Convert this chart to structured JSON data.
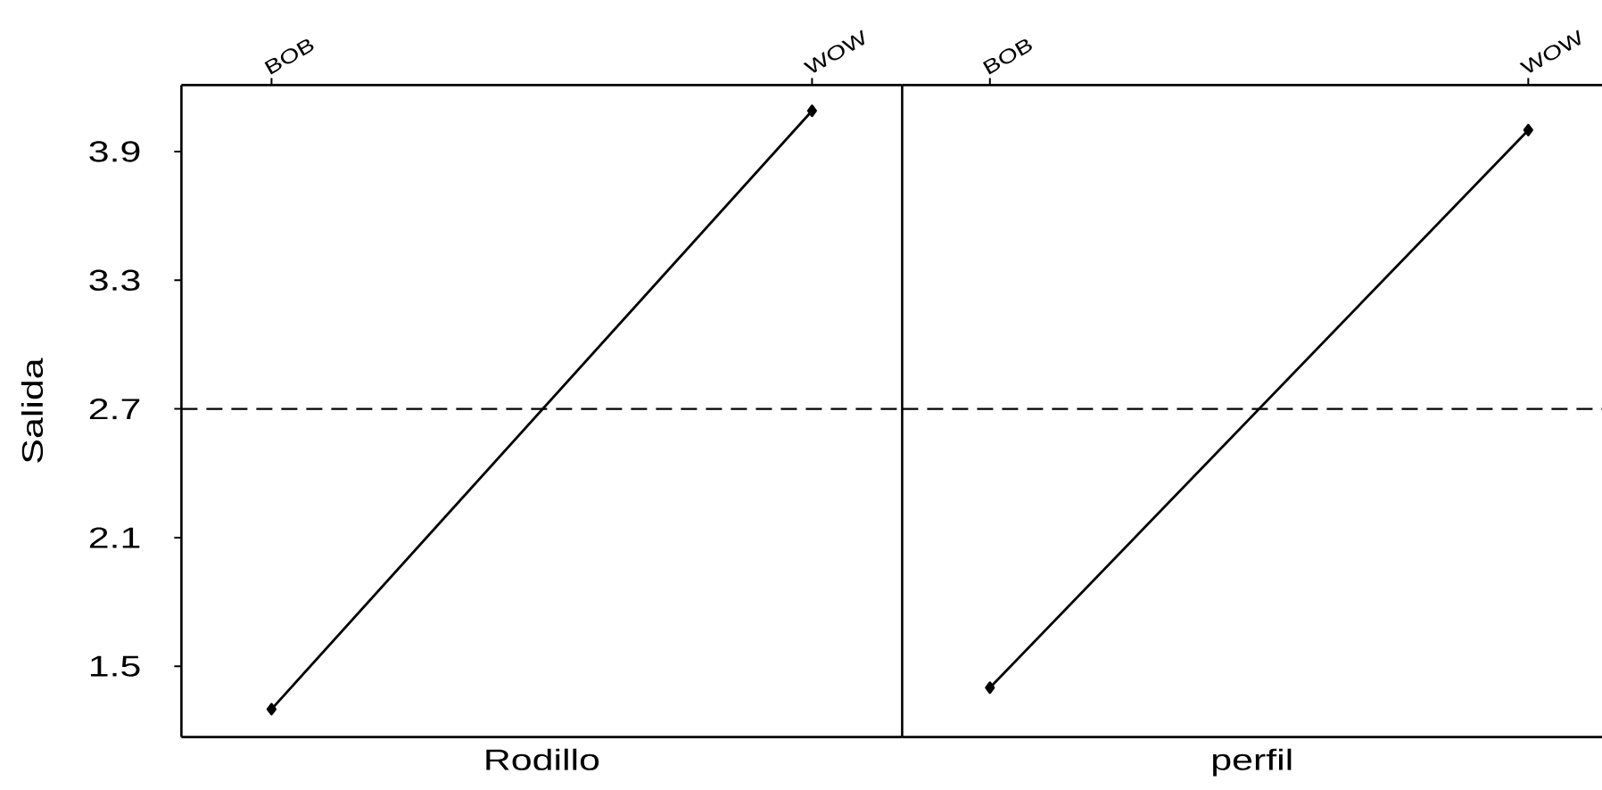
{
  "chart_data": [
    {
      "type": "line",
      "categories": [
        "BOB",
        "WOW"
      ],
      "values": [
        1.3,
        4.09
      ],
      "color": "#000000",
      "marker": "diamond",
      "line_style": "solid",
      "xlabel": "Rodillo",
      "ylabel": "Salida",
      "ylim": [
        1.17,
        4.21
      ],
      "yticks": [
        1.5,
        2.1,
        2.7,
        3.3,
        3.9
      ],
      "ref_lines": [
        {
          "axis": "y",
          "value": 2.7,
          "line_style": "dashed",
          "color": "#000000"
        }
      ]
    },
    {
      "type": "line",
      "categories": [
        "BOB",
        "WOW"
      ],
      "values": [
        1.4,
        4.0
      ],
      "color": "#000000",
      "marker": "diamond",
      "line_style": "solid",
      "xlabel": "perfil",
      "ylim": [
        1.17,
        4.21
      ],
      "tick_labels": "x",
      "ref_lines": [
        {
          "axis": "y",
          "value": 2.7,
          "line_style": "dashed",
          "color": "#000000"
        }
      ]
    }
  ]
}
